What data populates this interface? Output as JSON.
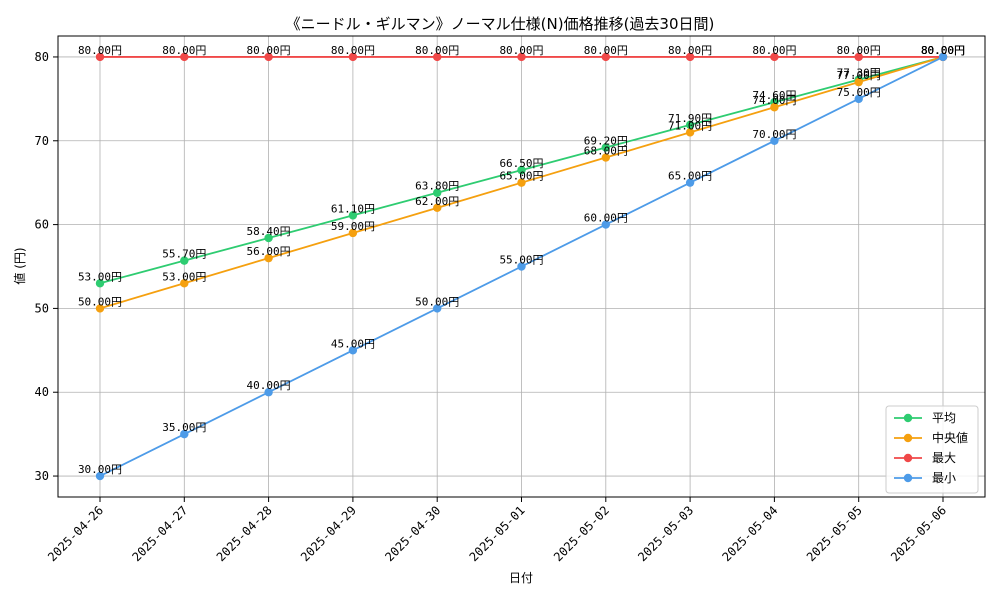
{
  "chart_data": {
    "type": "line",
    "title": "《ニードル・ギルマン》ノーマル仕様(N)価格推移(過去30日間)",
    "xlabel": "日付",
    "ylabel": "値 (円)",
    "categories": [
      "2025-04-26",
      "2025-04-27",
      "2025-04-28",
      "2025-04-29",
      "2025-04-30",
      "2025-05-01",
      "2025-05-02",
      "2025-05-03",
      "2025-05-04",
      "2025-05-05",
      "2025-05-06"
    ],
    "ylim": [
      27.5,
      82.5
    ],
    "yticks": [
      30,
      40,
      50,
      60,
      70,
      80
    ],
    "grid": true,
    "legend_position": "bottom-right",
    "series": [
      {
        "name": "平均",
        "color": "#2ecc71",
        "values": [
          53.0,
          55.7,
          58.4,
          61.1,
          63.8,
          66.5,
          69.2,
          71.9,
          74.6,
          77.3,
          80.0
        ],
        "labels": [
          "53.00円",
          "55.70円",
          "58.40円",
          "61.10円",
          "63.80円",
          "66.50円",
          "69.20円",
          "71.90円",
          "74.60円",
          "77.30円",
          "80.00円"
        ]
      },
      {
        "name": "中央値",
        "color": "#f5a00f",
        "values": [
          50,
          53,
          56,
          59,
          62,
          65,
          68,
          71,
          74,
          77,
          80
        ],
        "labels": [
          "50.00円",
          "53.00円",
          "56.00円",
          "59.00円",
          "62.00円",
          "65.00円",
          "68.00円",
          "71.00円",
          "74.00円",
          "77.00円",
          "80.00円"
        ]
      },
      {
        "name": "最大",
        "color": "#f04848",
        "values": [
          80,
          80,
          80,
          80,
          80,
          80,
          80,
          80,
          80,
          80,
          80
        ],
        "labels": [
          "80.00円",
          "80.00円",
          "80.00円",
          "80.00円",
          "80.00円",
          "80.00円",
          "80.00円",
          "80.00円",
          "80.00円",
          "80.00円",
          "80.00円"
        ]
      },
      {
        "name": "最小",
        "color": "#4d9be8",
        "values": [
          30,
          35,
          40,
          45,
          50,
          55,
          60,
          65,
          70,
          75,
          80
        ],
        "labels": [
          "30.00円",
          "35.00円",
          "40.00円",
          "45.00円",
          "50.00円",
          "55.00円",
          "60.00円",
          "65.00円",
          "70.00円",
          "75.00円",
          "80.00円"
        ]
      }
    ]
  }
}
